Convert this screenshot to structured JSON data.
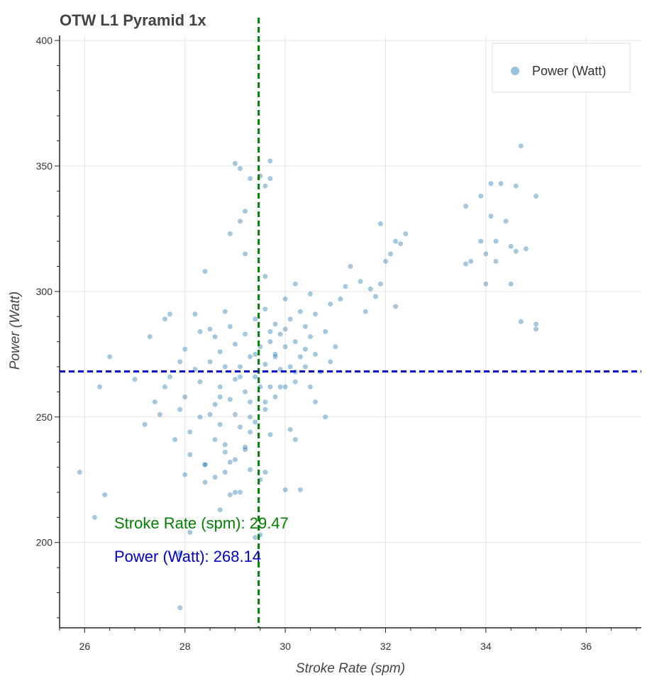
{
  "chart_data": {
    "type": "scatter",
    "title": "OTW L1 Pyramid 1x",
    "xlabel": "Stroke Rate (spm)",
    "ylabel": "Power (Watt)",
    "xlim": [
      25.5,
      37.1
    ],
    "ylim": [
      166,
      402
    ],
    "xticks": [
      26,
      28,
      30,
      32,
      34,
      36
    ],
    "yticks": [
      200,
      250,
      300,
      350,
      400
    ],
    "grid": true,
    "legend": {
      "position": "top-right",
      "entries": [
        "Power (Watt)"
      ]
    },
    "marker_color": "#1f77b4",
    "series": [
      {
        "name": "Power (Watt)",
        "points": [
          [
            25.9,
            228
          ],
          [
            26.2,
            210
          ],
          [
            26.3,
            262
          ],
          [
            26.4,
            219
          ],
          [
            26.5,
            274
          ],
          [
            27.0,
            265
          ],
          [
            27.3,
            282
          ],
          [
            27.2,
            247
          ],
          [
            27.4,
            256
          ],
          [
            27.5,
            251
          ],
          [
            27.6,
            262
          ],
          [
            27.6,
            289
          ],
          [
            27.7,
            291
          ],
          [
            27.7,
            266
          ],
          [
            27.8,
            241
          ],
          [
            27.9,
            272
          ],
          [
            27.9,
            253
          ],
          [
            28.0,
            277
          ],
          [
            28.0,
            258
          ],
          [
            28.1,
            244
          ],
          [
            28.1,
            235
          ],
          [
            28.2,
            269
          ],
          [
            28.2,
            291
          ],
          [
            28.3,
            284
          ],
          [
            28.3,
            264
          ],
          [
            28.3,
            250
          ],
          [
            28.4,
            231
          ],
          [
            28.4,
            224
          ],
          [
            28.5,
            285
          ],
          [
            28.5,
            272
          ],
          [
            28.6,
            282
          ],
          [
            28.6,
            255
          ],
          [
            28.6,
            241
          ],
          [
            28.7,
            276
          ],
          [
            28.7,
            262
          ],
          [
            28.7,
            247
          ],
          [
            28.8,
            292
          ],
          [
            28.8,
            270
          ],
          [
            28.8,
            239
          ],
          [
            28.8,
            228
          ],
          [
            28.9,
            286
          ],
          [
            28.9,
            257
          ],
          [
            28.9,
            219
          ],
          [
            29.0,
            279
          ],
          [
            29.0,
            265
          ],
          [
            29.0,
            251
          ],
          [
            29.0,
            233
          ],
          [
            29.1,
            270
          ],
          [
            29.1,
            246
          ],
          [
            29.2,
            283
          ],
          [
            29.2,
            260
          ],
          [
            29.2,
            238
          ],
          [
            29.3,
            274
          ],
          [
            29.3,
            256
          ],
          [
            29.3,
            229
          ],
          [
            29.4,
            289
          ],
          [
            29.4,
            266
          ],
          [
            29.4,
            248
          ],
          [
            29.5,
            278
          ],
          [
            29.5,
            262
          ],
          [
            29.6,
            293
          ],
          [
            29.6,
            271
          ],
          [
            29.6,
            253
          ],
          [
            29.7,
            284
          ],
          [
            29.7,
            262
          ],
          [
            29.7,
            243
          ],
          [
            29.8,
            287
          ],
          [
            29.8,
            275
          ],
          [
            29.8,
            258
          ],
          [
            29.9,
            269
          ],
          [
            29.9,
            283
          ],
          [
            30.0,
            297
          ],
          [
            30.0,
            278
          ],
          [
            30.0,
            262
          ],
          [
            30.1,
            289
          ],
          [
            30.1,
            270
          ],
          [
            30.2,
            303
          ],
          [
            30.2,
            280
          ],
          [
            30.2,
            264
          ],
          [
            30.3,
            292
          ],
          [
            30.3,
            274
          ],
          [
            30.4,
            286
          ],
          [
            30.4,
            270
          ],
          [
            30.5,
            299
          ],
          [
            30.5,
            282
          ],
          [
            30.6,
            275
          ],
          [
            30.6,
            291
          ],
          [
            30.7,
            268
          ],
          [
            30.8,
            284
          ],
          [
            30.8,
            250
          ],
          [
            30.9,
            295
          ],
          [
            30.9,
            272
          ],
          [
            31.0,
            278
          ],
          [
            31.1,
            297
          ],
          [
            31.2,
            302
          ],
          [
            31.3,
            310
          ],
          [
            31.5,
            304
          ],
          [
            31.6,
            292
          ],
          [
            31.7,
            301
          ],
          [
            31.8,
            298
          ],
          [
            31.9,
            303
          ],
          [
            31.9,
            327
          ],
          [
            32.0,
            312
          ],
          [
            32.1,
            315
          ],
          [
            32.2,
            320
          ],
          [
            32.2,
            294
          ],
          [
            32.3,
            319
          ],
          [
            32.4,
            323
          ],
          [
            33.6,
            311
          ],
          [
            33.6,
            334
          ],
          [
            33.7,
            312
          ],
          [
            33.9,
            320
          ],
          [
            33.9,
            338
          ],
          [
            34.0,
            315
          ],
          [
            34.0,
            303
          ],
          [
            34.1,
            330
          ],
          [
            34.1,
            343
          ],
          [
            34.2,
            320
          ],
          [
            34.2,
            312
          ],
          [
            34.3,
            343
          ],
          [
            34.4,
            328
          ],
          [
            34.5,
            318
          ],
          [
            34.5,
            303
          ],
          [
            34.6,
            316
          ],
          [
            34.6,
            342
          ],
          [
            34.7,
            358
          ],
          [
            34.7,
            288
          ],
          [
            34.8,
            317
          ],
          [
            35.0,
            338
          ],
          [
            35.0,
            287
          ],
          [
            35.0,
            285
          ],
          [
            29.0,
            351
          ],
          [
            29.1,
            349
          ],
          [
            29.3,
            345
          ],
          [
            29.5,
            346
          ],
          [
            29.6,
            342
          ],
          [
            29.7,
            352
          ],
          [
            29.7,
            345
          ],
          [
            29.2,
            332
          ],
          [
            29.1,
            328
          ],
          [
            29.2,
            315
          ],
          [
            29.6,
            306
          ],
          [
            28.4,
            308
          ],
          [
            28.9,
            323
          ],
          [
            29.8,
            274
          ],
          [
            29.5,
            225
          ],
          [
            29.0,
            220
          ],
          [
            29.1,
            220
          ],
          [
            30.0,
            221
          ],
          [
            30.3,
            221
          ],
          [
            28.1,
            204
          ],
          [
            27.9,
            196
          ],
          [
            27.9,
            195
          ],
          [
            27.9,
            174
          ],
          [
            29.5,
            203
          ],
          [
            29.4,
            202
          ],
          [
            28.7,
            213
          ],
          [
            28.8,
            236
          ],
          [
            30.1,
            245
          ],
          [
            30.2,
            241
          ],
          [
            29.6,
            228
          ],
          [
            28.0,
            227
          ],
          [
            28.4,
            231
          ],
          [
            28.6,
            226
          ],
          [
            28.9,
            232
          ],
          [
            29.2,
            237
          ],
          [
            29.3,
            244
          ],
          [
            30.5,
            262
          ],
          [
            30.6,
            256
          ],
          [
            28.5,
            251
          ],
          [
            28.7,
            258
          ],
          [
            29.1,
            266
          ],
          [
            29.4,
            275
          ],
          [
            29.7,
            280
          ],
          [
            30.0,
            285
          ],
          [
            30.4,
            277
          ],
          [
            30.2,
            268
          ],
          [
            29.9,
            262
          ],
          [
            29.6,
            256
          ],
          [
            29.3,
            250
          ]
        ]
      }
    ],
    "reference_lines": [
      {
        "axis": "x",
        "value": 29.47,
        "color": "#008000"
      },
      {
        "axis": "y",
        "value": 268.14,
        "color": "#0000cc"
      }
    ],
    "annotations": [
      {
        "text": "Stroke Rate (spm):  29.47",
        "color": "#008000"
      },
      {
        "text": "Power (Watt): 268.14",
        "color": "#0000cc"
      }
    ]
  }
}
